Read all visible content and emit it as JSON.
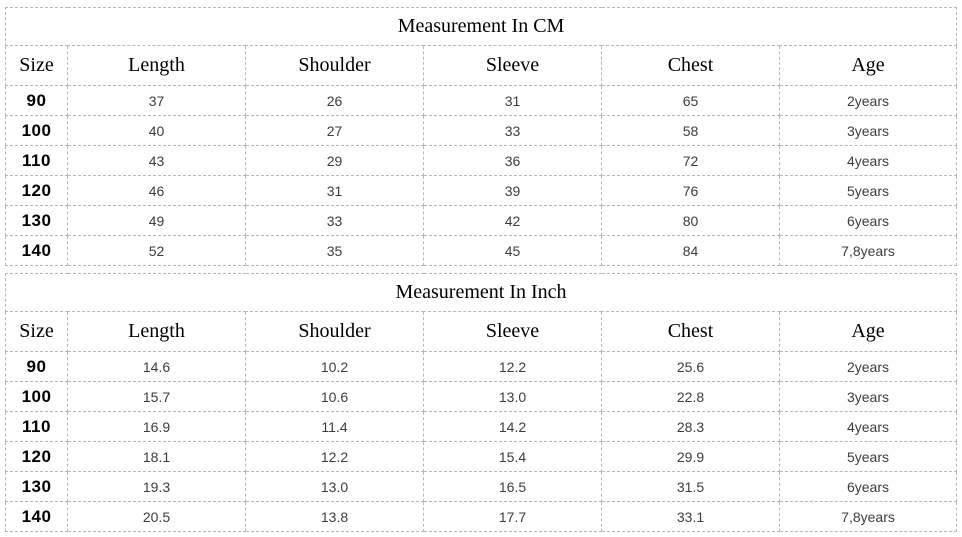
{
  "page": {
    "background_color": "#ffffff",
    "border_color": "#b7b7b7"
  },
  "tables": [
    {
      "title": "Measurement In CM",
      "columns": [
        "Size",
        "Length",
        "Shoulder",
        "Sleeve",
        "Chest",
        "Age"
      ],
      "rows": [
        [
          "90",
          "37",
          "26",
          "31",
          "65",
          "2years"
        ],
        [
          "100",
          "40",
          "27",
          "33",
          "58",
          "3years"
        ],
        [
          "110",
          "43",
          "29",
          "36",
          "72",
          "4years"
        ],
        [
          "120",
          "46",
          "31",
          "39",
          "76",
          "5years"
        ],
        [
          "130",
          "49",
          "33",
          "42",
          "80",
          "6years"
        ],
        [
          "140",
          "52",
          "35",
          "45",
          "84",
          "7,8years"
        ]
      ]
    },
    {
      "title": "Measurement In Inch",
      "columns": [
        "Size",
        "Length",
        "Shoulder",
        "Sleeve",
        "Chest",
        "Age"
      ],
      "rows": [
        [
          "90",
          "14.6",
          "10.2",
          "12.2",
          "25.6",
          "2years"
        ],
        [
          "100",
          "15.7",
          "10.6",
          "13.0",
          "22.8",
          "3years"
        ],
        [
          "110",
          "16.9",
          "11.4",
          "14.2",
          "28.3",
          "4years"
        ],
        [
          "120",
          "18.1",
          "12.2",
          "15.4",
          "29.9",
          "5years"
        ],
        [
          "130",
          "19.3",
          "13.0",
          "16.5",
          "31.5",
          "6years"
        ],
        [
          "140",
          "20.5",
          "13.8",
          "17.7",
          "33.1",
          "7,8years"
        ]
      ]
    }
  ]
}
